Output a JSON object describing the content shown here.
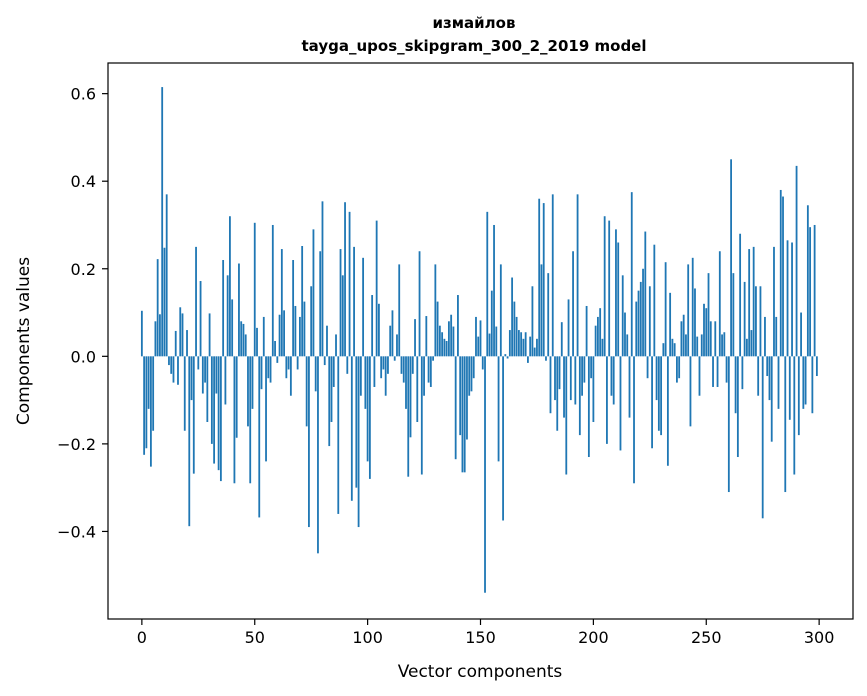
{
  "chart_data": {
    "type": "bar",
    "title_line1": "измайлов",
    "title_line2": "tayga_upos_skipgram_300_2_2019 model",
    "xlabel": "Vector components",
    "ylabel": "Components values",
    "xlim": [
      -15,
      315
    ],
    "ylim": [
      -0.6,
      0.67
    ],
    "xticks": [
      {
        "value": 0,
        "label": "0"
      },
      {
        "value": 50,
        "label": "50"
      },
      {
        "value": 100,
        "label": "100"
      },
      {
        "value": 150,
        "label": "150"
      },
      {
        "value": 200,
        "label": "200"
      },
      {
        "value": 250,
        "label": "250"
      },
      {
        "value": 300,
        "label": "300"
      }
    ],
    "yticks": [
      {
        "value": -0.4,
        "label": "−0.4"
      },
      {
        "value": -0.2,
        "label": "−0.2"
      },
      {
        "value": 0.0,
        "label": "0.0"
      },
      {
        "value": 0.2,
        "label": "0.2"
      },
      {
        "value": 0.4,
        "label": "0.4"
      },
      {
        "value": 0.6,
        "label": "0.6"
      }
    ],
    "bar_color": "#1f77b4",
    "grid": false,
    "values": [
      0.104,
      -0.225,
      -0.21,
      -0.12,
      -0.252,
      -0.17,
      0.08,
      0.222,
      0.096,
      0.615,
      0.248,
      0.37,
      -0.02,
      -0.04,
      -0.06,
      0.058,
      -0.065,
      0.112,
      0.098,
      -0.17,
      0.06,
      -0.388,
      -0.1,
      -0.268,
      0.25,
      -0.03,
      0.172,
      -0.085,
      -0.06,
      -0.15,
      0.098,
      -0.2,
      -0.245,
      -0.085,
      -0.26,
      -0.285,
      0.22,
      -0.11,
      0.185,
      0.32,
      0.13,
      -0.29,
      -0.186,
      0.212,
      0.08,
      0.074,
      0.05,
      -0.16,
      -0.29,
      -0.12,
      0.305,
      0.065,
      -0.368,
      -0.075,
      0.09,
      -0.24,
      -0.05,
      -0.06,
      0.3,
      0.035,
      -0.015,
      0.095,
      0.245,
      0.105,
      -0.05,
      -0.03,
      -0.09,
      0.22,
      0.115,
      -0.03,
      0.09,
      0.252,
      0.125,
      -0.16,
      -0.39,
      0.16,
      0.29,
      -0.08,
      -0.45,
      0.24,
      0.354,
      -0.02,
      0.07,
      -0.205,
      -0.15,
      -0.07,
      0.05,
      -0.36,
      0.245,
      0.185,
      0.352,
      -0.04,
      0.33,
      -0.33,
      0.25,
      -0.3,
      -0.39,
      -0.09,
      0.225,
      -0.12,
      -0.24,
      -0.28,
      0.14,
      -0.07,
      0.31,
      0.12,
      -0.05,
      -0.03,
      -0.09,
      -0.04,
      0.07,
      0.105,
      -0.01,
      0.05,
      0.21,
      -0.04,
      -0.06,
      -0.12,
      -0.275,
      -0.185,
      -0.04,
      0.085,
      -0.15,
      0.24,
      -0.27,
      -0.09,
      0.092,
      -0.06,
      -0.07,
      -0.01,
      0.21,
      0.125,
      0.07,
      0.055,
      0.04,
      0.035,
      0.08,
      0.095,
      0.068,
      -0.235,
      0.14,
      -0.18,
      -0.265,
      -0.265,
      -0.19,
      -0.09,
      -0.08,
      -0.05,
      0.09,
      0.045,
      0.082,
      -0.03,
      -0.54,
      0.33,
      0.052,
      0.15,
      0.3,
      0.068,
      -0.24,
      0.21,
      -0.375,
      0.005,
      -0.005,
      0.06,
      0.18,
      0.125,
      0.09,
      0.06,
      0.055,
      0.04,
      0.055,
      -0.015,
      0.045,
      0.16,
      0.02,
      0.04,
      0.36,
      0.21,
      0.35,
      -0.01,
      0.19,
      -0.13,
      0.37,
      -0.1,
      -0.17,
      -0.075,
      0.078,
      -0.14,
      -0.27,
      0.13,
      -0.1,
      0.24,
      -0.11,
      0.37,
      -0.18,
      -0.09,
      -0.06,
      0.115,
      -0.23,
      -0.05,
      -0.15,
      0.07,
      0.09,
      0.11,
      0.04,
      0.32,
      -0.2,
      0.31,
      -0.09,
      -0.11,
      0.29,
      0.26,
      -0.215,
      0.185,
      0.1,
      0.05,
      -0.14,
      0.375,
      -0.29,
      0.125,
      0.15,
      0.17,
      0.2,
      0.285,
      -0.05,
      0.16,
      -0.21,
      0.255,
      -0.1,
      -0.17,
      -0.18,
      0.03,
      0.215,
      -0.25,
      0.145,
      0.04,
      0.03,
      -0.06,
      -0.05,
      0.08,
      0.095,
      0.05,
      0.21,
      -0.16,
      0.225,
      0.155,
      0.045,
      -0.09,
      0.05,
      0.12,
      0.11,
      0.19,
      0.08,
      -0.07,
      0.08,
      -0.07,
      0.24,
      0.05,
      0.055,
      -0.06,
      -0.31,
      0.45,
      0.19,
      -0.13,
      -0.23,
      0.28,
      -0.075,
      0.17,
      0.04,
      0.245,
      0.06,
      0.25,
      0.16,
      -0.09,
      0.16,
      -0.37,
      0.09,
      -0.045,
      -0.1,
      -0.195,
      0.25,
      0.09,
      -0.12,
      0.38,
      0.365,
      -0.31,
      0.265,
      -0.145,
      0.26,
      -0.27,
      0.435,
      -0.18,
      0.1,
      -0.12,
      -0.11,
      0.345,
      0.295,
      -0.13,
      0.3,
      -0.045
    ]
  }
}
